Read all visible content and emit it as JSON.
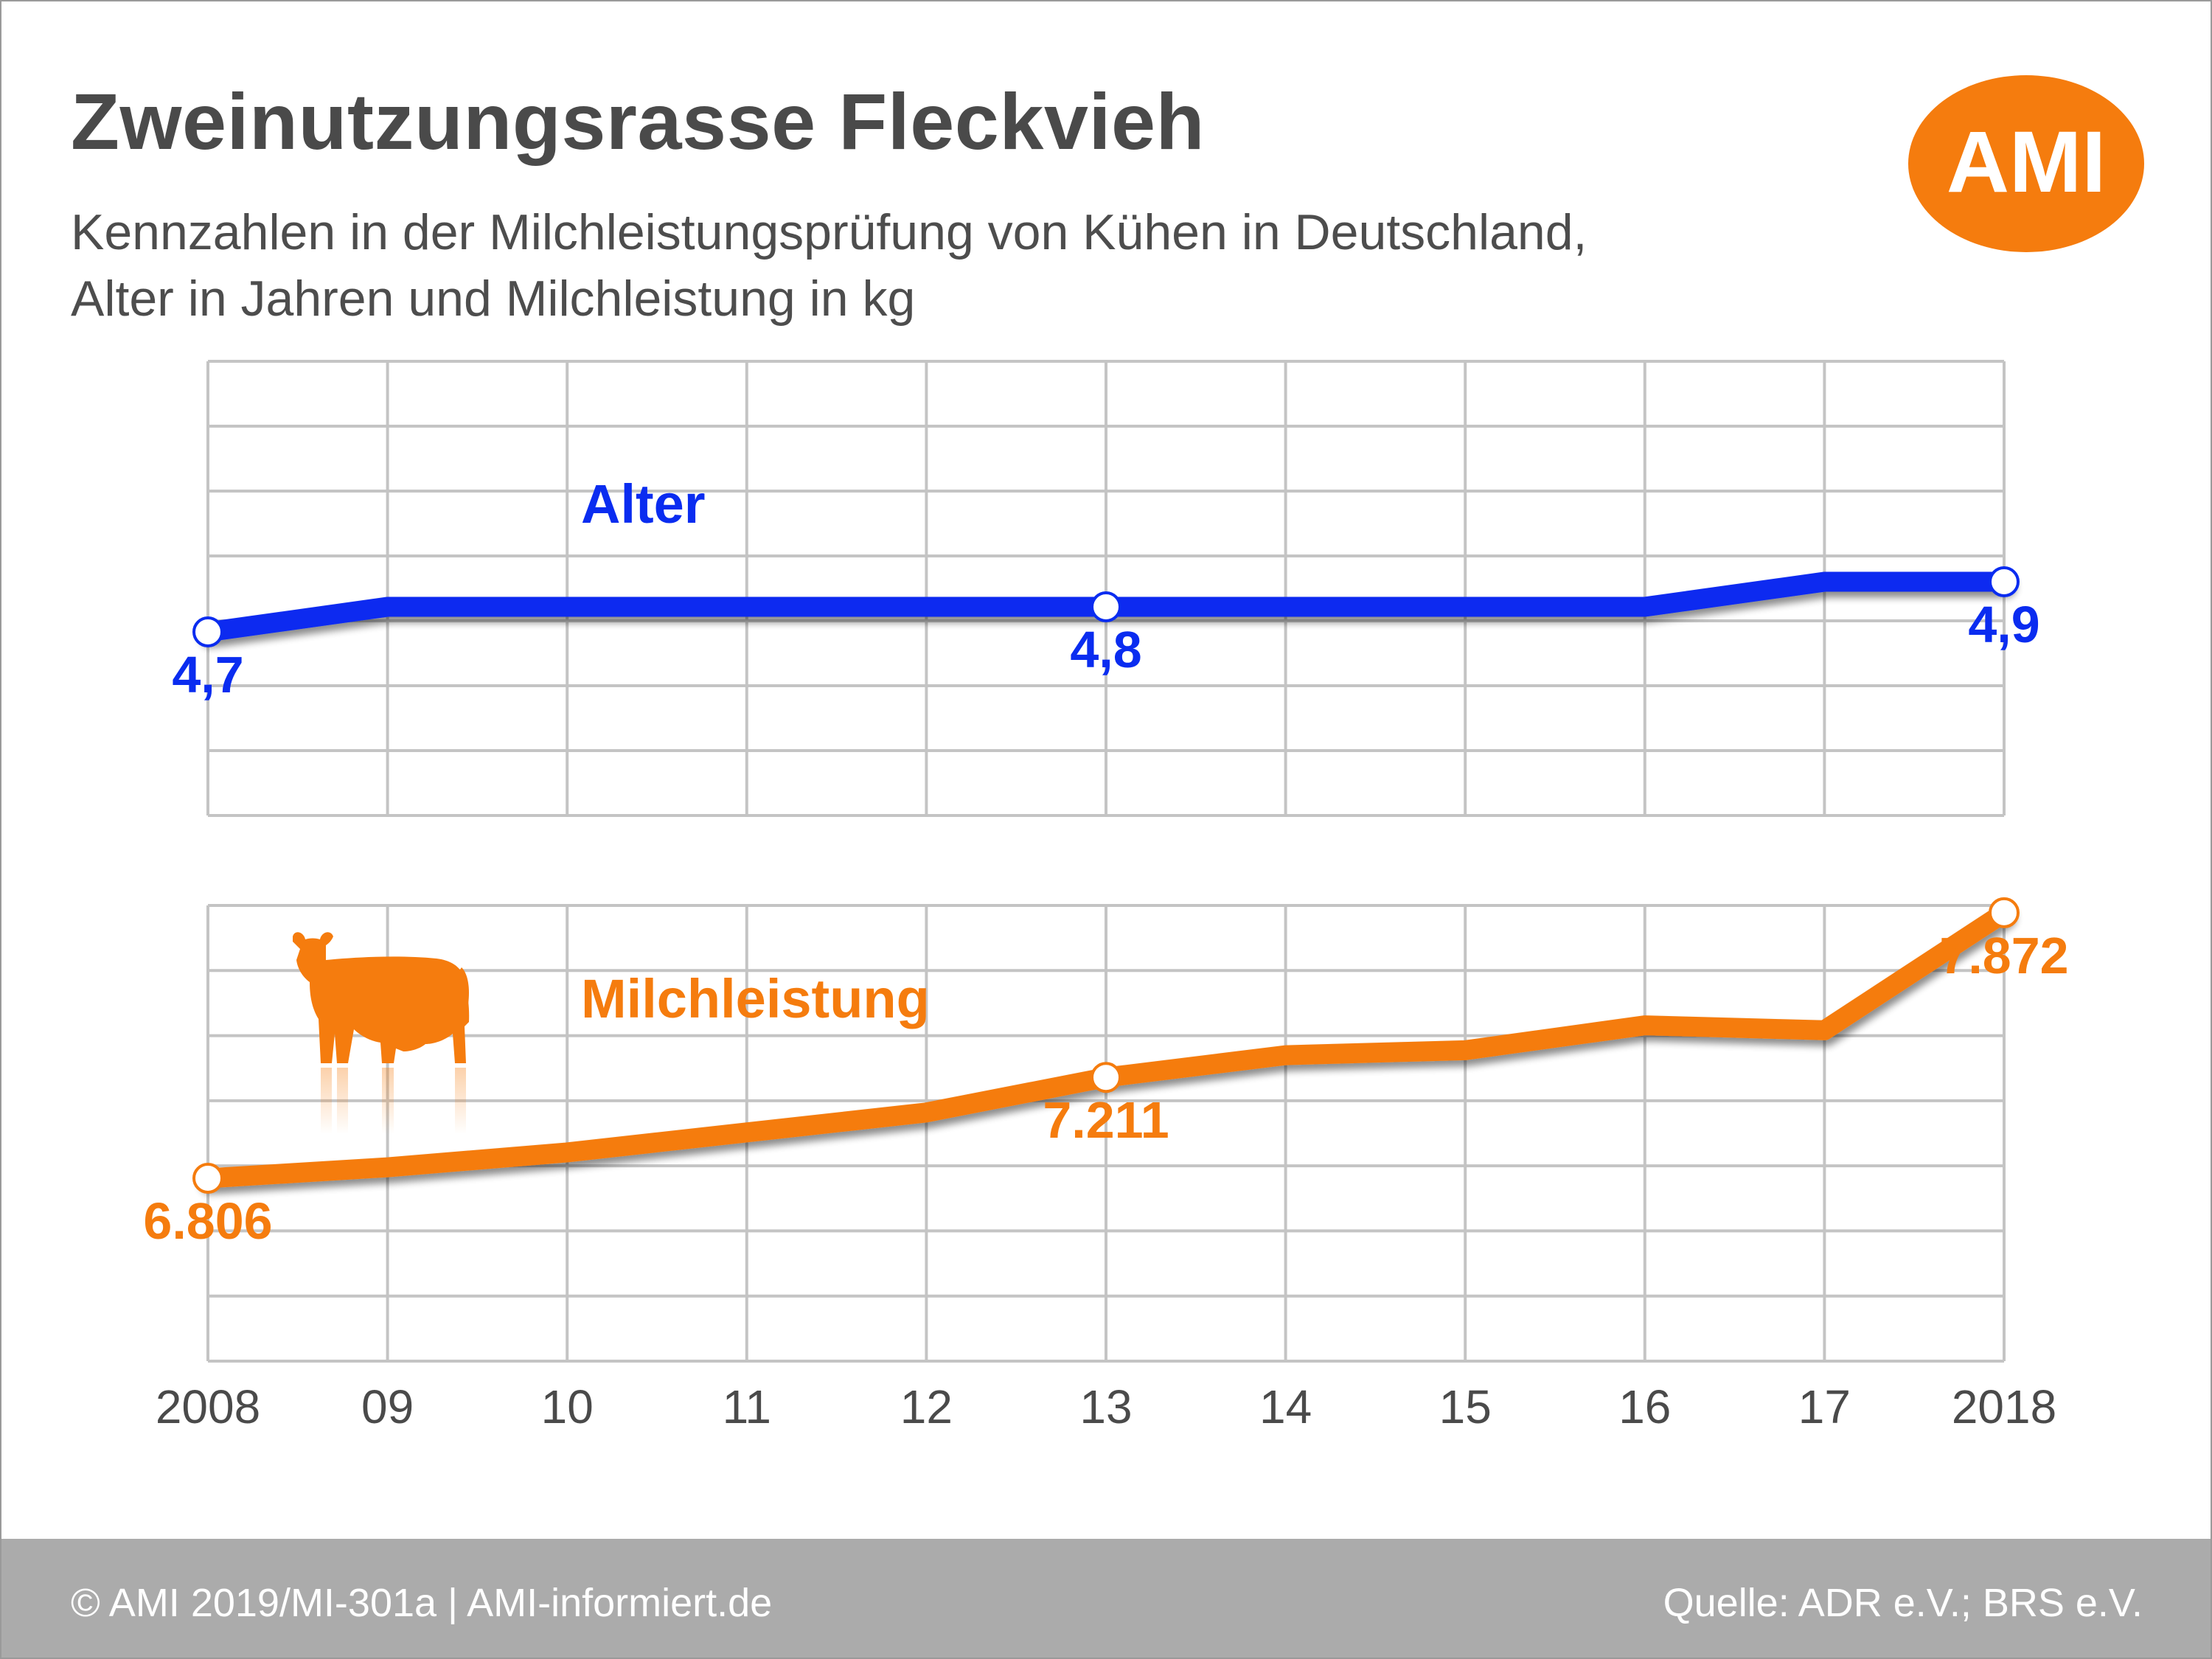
{
  "title": "Zweinutzungsrasse Fleckvieh",
  "subtitle_line1": "Kennzahlen in der Milchleistungsprüfung von Kühen in Deutschland,",
  "subtitle_line2": "Alter in Jahren und Milchleistung in kg",
  "logo_text": "AMI",
  "footer": {
    "left": "© AMI 2019/MI-301a | AMI-informiert.de",
    "right": "Quelle: ADR e.V.; BRS e.V."
  },
  "colors": {
    "alter": "#0a2cf0",
    "milch": "#f57c0e",
    "grid": "#c4c4c4",
    "brand": "#f57c0e",
    "axis_text": "#4a4a4a"
  },
  "icon": "cow-icon",
  "chart_data": {
    "type": "line",
    "categories": [
      "2008",
      "09",
      "10",
      "11",
      "12",
      "13",
      "14",
      "15",
      "16",
      "17",
      "2018"
    ],
    "series": [
      {
        "name": "Alter",
        "values": [
          4.7,
          4.8,
          4.8,
          4.8,
          4.8,
          4.8,
          4.8,
          4.8,
          4.8,
          4.9,
          4.9
        ],
        "labels": [
          {
            "index": 0,
            "text": "4,7"
          },
          {
            "index": 5,
            "text": "4,8"
          },
          {
            "index": 10,
            "text": "4,9"
          }
        ]
      },
      {
        "name": "Milchleistung",
        "values": [
          6806,
          6850,
          6910,
          6990,
          7070,
          7211,
          7300,
          7320,
          7420,
          7400,
          7872
        ],
        "labels": [
          {
            "index": 0,
            "text": "6.806"
          },
          {
            "index": 5,
            "text": "7.211"
          },
          {
            "index": 10,
            "text": "7.872"
          }
        ]
      }
    ],
    "grid": true
  }
}
